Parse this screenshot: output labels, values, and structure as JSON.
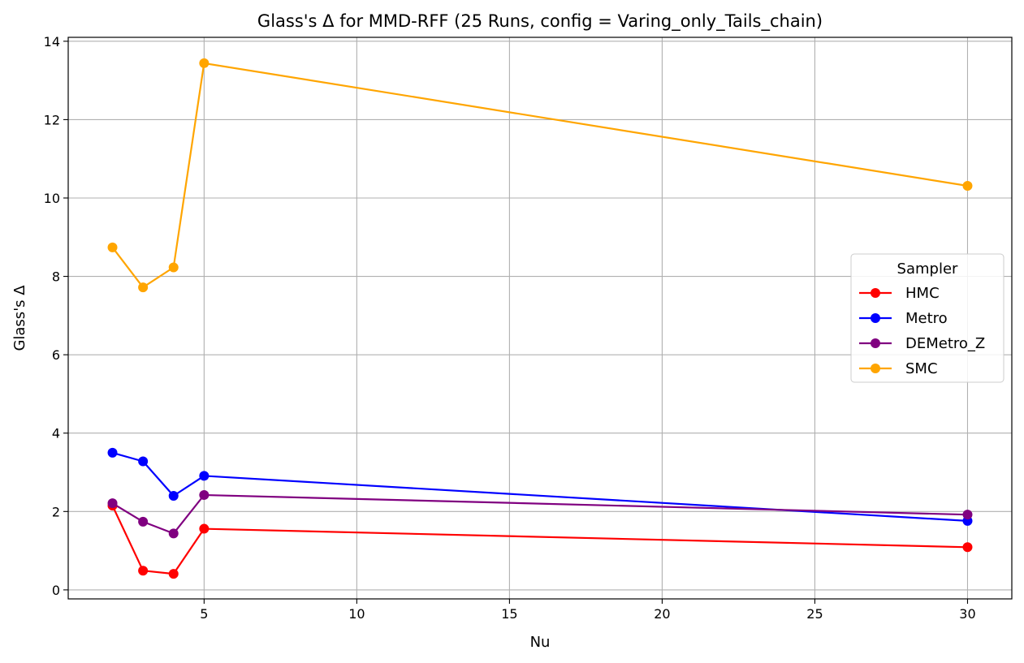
{
  "chart_data": {
    "type": "line",
    "title": "Glass's Δ for MMD-RFF (25 Runs, config = Varing_only_Tails_chain)",
    "xlabel": "Nu",
    "ylabel": "Glass's Δ",
    "xlim": [
      0.55,
      31.45
    ],
    "ylim": [
      -0.23,
      14.1
    ],
    "xticks": [
      5,
      10,
      15,
      20,
      25,
      30
    ],
    "yticks": [
      0,
      2,
      4,
      6,
      8,
      10,
      12,
      14
    ],
    "grid": true,
    "legend": {
      "title": "Sampler",
      "position": "center-right"
    },
    "x": [
      2,
      3,
      4,
      5,
      30
    ],
    "series": [
      {
        "name": "HMC",
        "color": "#ff0000",
        "values": [
          2.15,
          0.49,
          0.41,
          1.56,
          1.09
        ]
      },
      {
        "name": "Metro",
        "color": "#0000ff",
        "values": [
          3.5,
          3.28,
          2.4,
          2.91,
          1.76
        ]
      },
      {
        "name": "DEMetro_Z",
        "color": "#800080",
        "values": [
          2.21,
          1.74,
          1.44,
          2.42,
          1.92
        ]
      },
      {
        "name": "SMC",
        "color": "#ffa500",
        "values": [
          8.74,
          7.72,
          8.23,
          13.44,
          10.31
        ]
      }
    ]
  }
}
